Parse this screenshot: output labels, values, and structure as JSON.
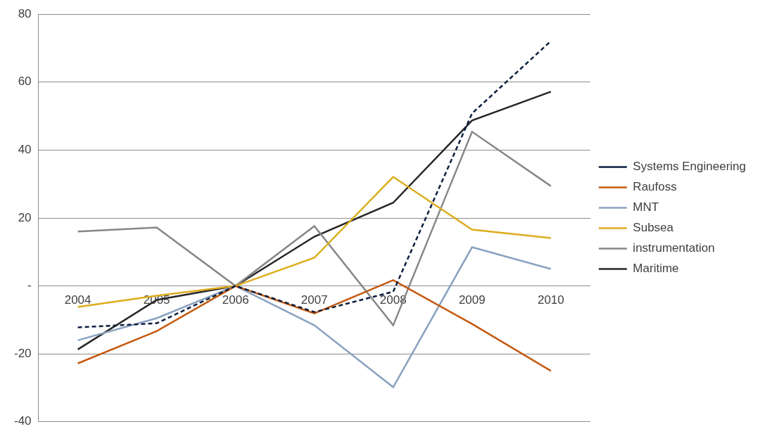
{
  "chart_data": {
    "type": "line",
    "categories": [
      "2004",
      "2005",
      "2006",
      "2007",
      "2008",
      "2009",
      "2010"
    ],
    "series": [
      {
        "name": "Systems Engineering",
        "color": "#0d1e3f",
        "line_style": "dashed",
        "values": [
          -12.2,
          -11,
          0,
          -7.7,
          -1.7,
          50.8,
          72.1
        ]
      },
      {
        "name": "Raufoss",
        "color": "#c55a11",
        "line_style": "solid",
        "values": [
          -22.8,
          -13.3,
          0,
          -8.1,
          1.7,
          -11.2,
          -25
        ]
      },
      {
        "name": "MNT",
        "color": "#8aa2c0",
        "line_style": "solid",
        "values": [
          -16,
          -9.5,
          0,
          -11.6,
          -29.8,
          11.4,
          5
        ]
      },
      {
        "name": "Subsea",
        "color": "#dcad1d",
        "line_style": "solid",
        "values": [
          -6.2,
          -2.9,
          0,
          8.3,
          32.1,
          16.6,
          14.1
        ]
      },
      {
        "name": "instrumentation",
        "color": "#868686",
        "line_style": "solid",
        "values": [
          16,
          17.2,
          0,
          17.6,
          -11.6,
          45.4,
          29.4
        ]
      },
      {
        "name": "Maritime",
        "color": "#262626",
        "line_style": "solid",
        "values": [
          -18.7,
          -4.1,
          0,
          14.5,
          24.5,
          48.7,
          57.2
        ]
      }
    ],
    "ylim": [
      -40,
      80
    ],
    "yticks": [
      -40,
      -20,
      {
        "value": 0,
        "label": "-"
      },
      20,
      40,
      60,
      80
    ],
    "grid": true,
    "legend": "right"
  }
}
